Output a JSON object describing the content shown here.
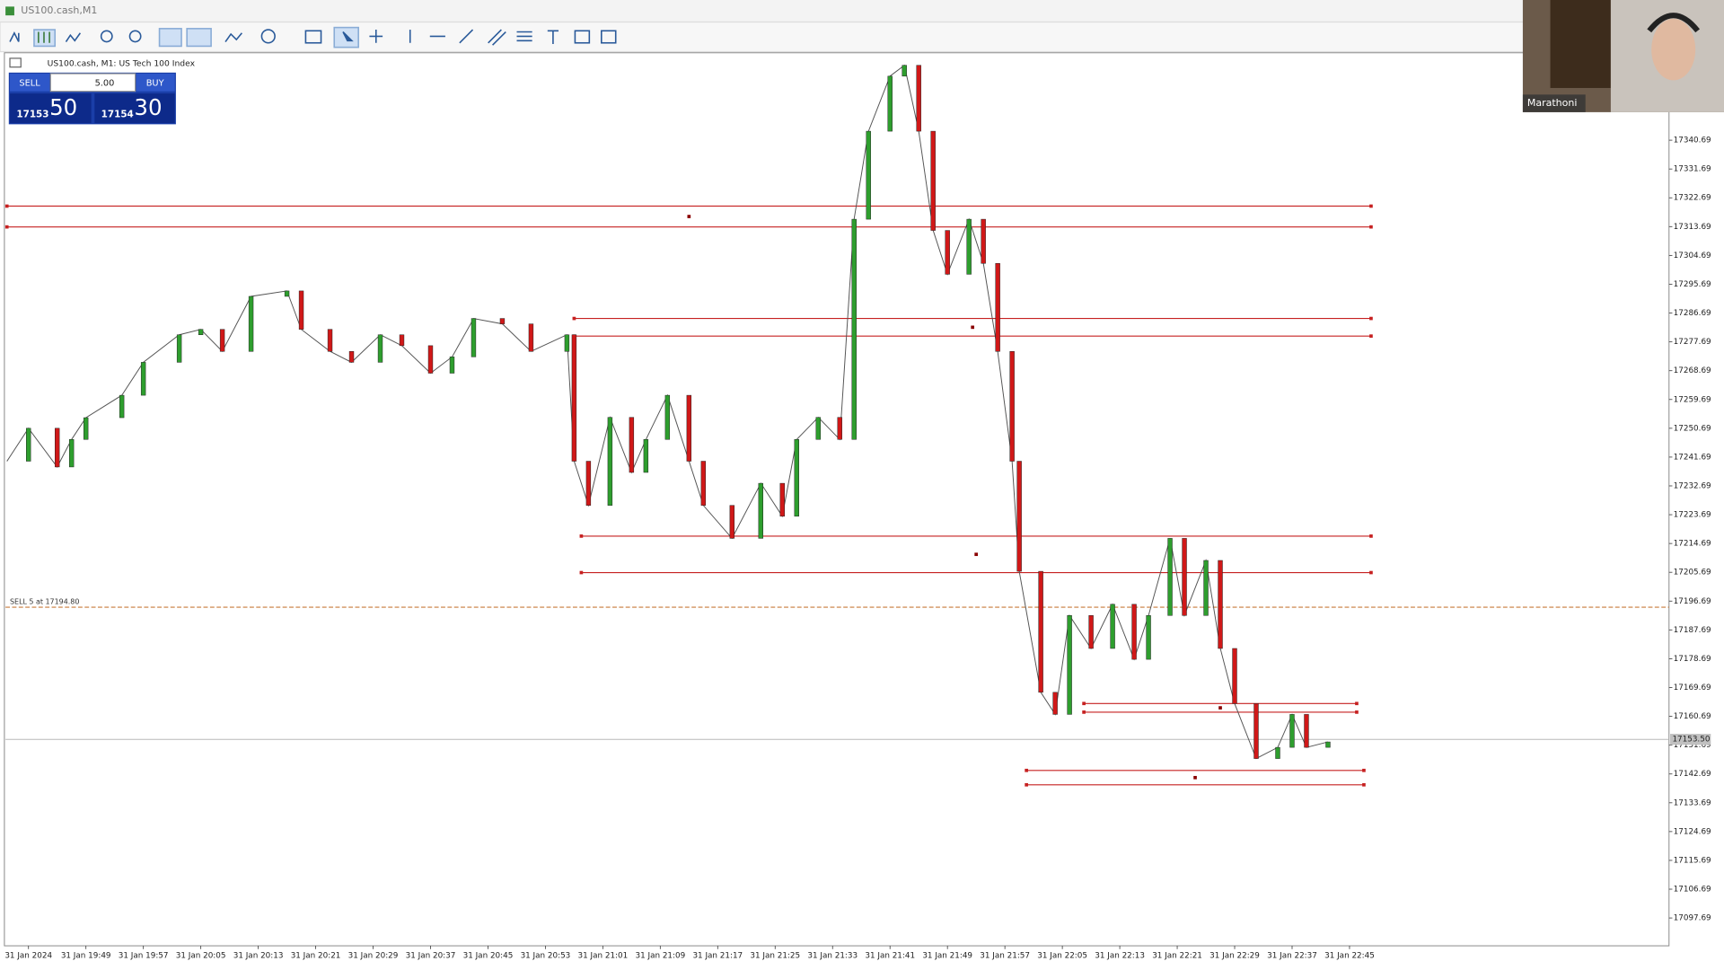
{
  "window_title": "US100.cash,M1",
  "chart_tab": "US100.cash, M1:  US Tech 100 Index",
  "trade_panel": {
    "sell_label": "SELL",
    "buy_label": "BUY",
    "volume": "5.00",
    "sell_price_main": "17153",
    "sell_price_big": "50",
    "buy_price_main": "17154",
    "buy_price_big": "30"
  },
  "webcam_name": "Marathoni",
  "chart_data": {
    "type": "line",
    "x": [
      -3,
      0,
      4,
      6,
      8,
      13,
      16,
      21,
      24,
      27,
      31,
      36,
      38,
      42,
      45,
      49,
      52,
      56,
      59,
      62,
      66,
      70,
      75,
      76,
      78,
      81,
      84,
      86,
      89,
      92,
      94,
      98,
      102,
      105,
      107,
      110,
      113,
      115,
      117,
      120,
      122,
      124,
      126,
      128,
      131,
      133,
      135,
      137,
      138,
      141,
      143,
      145,
      148,
      151,
      154,
      156,
      159,
      161,
      164,
      166,
      168,
      171,
      174,
      176,
      178,
      181
    ],
    "values": [
      17240.4,
      17250.7,
      17238.6,
      17247.2,
      17254.0,
      17261.0,
      17271.3,
      17279.9,
      17281.6,
      17274.7,
      17291.9,
      17293.6,
      17281.6,
      17274.7,
      17271.3,
      17279.9,
      17276.5,
      17267.9,
      17273.0,
      17285.0,
      17283.3,
      17274.7,
      17279.9,
      17240.4,
      17226.6,
      17254.1,
      17236.9,
      17247.2,
      17261.0,
      17240.4,
      17226.6,
      17216.3,
      17233.5,
      17223.2,
      17247.2,
      17254.1,
      17247.2,
      17316.0,
      17343.5,
      17360.7,
      17364.1,
      17343.5,
      17312.5,
      17298.8,
      17316.0,
      17302.2,
      17274.7,
      17240.4,
      17206.0,
      17168.2,
      17161.3,
      17192.2,
      17181.9,
      17195.7,
      17178.5,
      17192.2,
      17216.3,
      17192.2,
      17209.4,
      17181.9,
      17164.7,
      17147.5,
      17151.0,
      17161.3,
      17151.0,
      17152.7
    ],
    "up_color": "#2e9e2e",
    "down_color": "#d01818",
    "xlim": [
      -3.2,
      228.5
    ],
    "ylim": [
      17089,
      17368
    ],
    "yticks": [
      17097.69,
      17106.69,
      17115.69,
      17124.69,
      17133.69,
      17142.69,
      17151.69,
      17160.69,
      17169.69,
      17178.69,
      17187.69,
      17196.69,
      17205.69,
      17214.69,
      17223.69,
      17232.69,
      17241.69,
      17250.69,
      17259.69,
      17268.69,
      17277.69,
      17286.69,
      17295.69,
      17304.69,
      17313.69,
      17322.69,
      17331.69,
      17340.69
    ],
    "xticks": [
      {
        "value": 0,
        "label": "31 Jan 2024"
      },
      {
        "value": 8,
        "label": "31 Jan 19:49"
      },
      {
        "value": 16,
        "label": "31 Jan 19:57"
      },
      {
        "value": 24,
        "label": "31 Jan 20:05"
      },
      {
        "value": 32,
        "label": "31 Jan 20:13"
      },
      {
        "value": 40,
        "label": "31 Jan 20:21"
      },
      {
        "value": 48,
        "label": "31 Jan 20:29"
      },
      {
        "value": 56,
        "label": "31 Jan 20:37"
      },
      {
        "value": 64,
        "label": "31 Jan 20:45"
      },
      {
        "value": 72,
        "label": "31 Jan 20:53"
      },
      {
        "value": 80,
        "label": "31 Jan 21:01"
      },
      {
        "value": 88,
        "label": "31 Jan 21:09"
      },
      {
        "value": 96,
        "label": "31 Jan 21:17"
      },
      {
        "value": 104,
        "label": "31 Jan 21:25"
      },
      {
        "value": 112,
        "label": "31 Jan 21:33"
      },
      {
        "value": 120,
        "label": "31 Jan 21:41"
      },
      {
        "value": 128,
        "label": "31 Jan 21:49"
      },
      {
        "value": 136,
        "label": "31 Jan 21:57"
      },
      {
        "value": 144,
        "label": "31 Jan 22:05"
      },
      {
        "value": 152,
        "label": "31 Jan 22:13"
      },
      {
        "value": 160,
        "label": "31 Jan 22:21"
      },
      {
        "value": 168,
        "label": "31 Jan 22:29"
      },
      {
        "value": 176,
        "label": "31 Jan 22:37"
      },
      {
        "value": 184,
        "label": "31 Jan 22:45"
      }
    ],
    "zones": [
      {
        "top": 17320.1,
        "bottom": 17313.6,
        "start": -3,
        "end": 187
      },
      {
        "top": 17285.0,
        "bottom": 17279.5,
        "start": 76,
        "end": 187
      },
      {
        "top": 17217.0,
        "bottom": 17205.6,
        "start": 77,
        "end": 187
      },
      {
        "top": 17164.7,
        "bottom": 17162.0,
        "start": 147,
        "end": 185
      },
      {
        "top": 17143.8,
        "bottom": 17139.3,
        "start": 139,
        "end": 186
      }
    ],
    "zone_color": "#c62020",
    "order_line": {
      "label": "SELL 5 at 17194.80",
      "price": 17194.8
    },
    "current_price": {
      "value": 17153.5,
      "label": "17153.50"
    },
    "grid": false
  }
}
